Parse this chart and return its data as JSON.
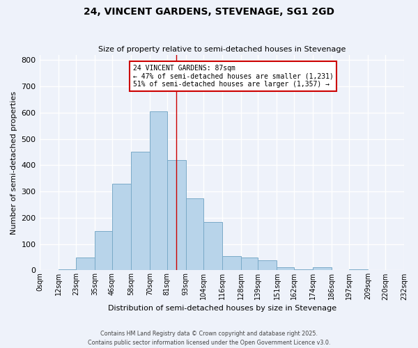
{
  "title": "24, VINCENT GARDENS, STEVENAGE, SG1 2GD",
  "subtitle": "Size of property relative to semi-detached houses in Stevenage",
  "xlabel": "Distribution of semi-detached houses by size in Stevenage",
  "ylabel": "Number of semi-detached properties",
  "bin_labels": [
    "0sqm",
    "12sqm",
    "23sqm",
    "35sqm",
    "46sqm",
    "58sqm",
    "70sqm",
    "81sqm",
    "93sqm",
    "104sqm",
    "116sqm",
    "128sqm",
    "139sqm",
    "151sqm",
    "162sqm",
    "174sqm",
    "186sqm",
    "197sqm",
    "209sqm",
    "220sqm",
    "232sqm"
  ],
  "bin_edges": [
    0,
    12,
    23,
    35,
    46,
    58,
    70,
    81,
    93,
    104,
    116,
    128,
    139,
    151,
    162,
    174,
    186,
    197,
    209,
    220,
    232
  ],
  "bar_heights": [
    0,
    5,
    48,
    150,
    330,
    450,
    605,
    420,
    275,
    185,
    55,
    48,
    38,
    12,
    5,
    12,
    0,
    5,
    0,
    0
  ],
  "bar_color": "#b8d4ea",
  "bar_edge_color": "#7aaac8",
  "reference_line_x": 87,
  "reference_line_color": "#cc0000",
  "annotation_title": "24 VINCENT GARDENS: 87sqm",
  "annotation_line1": "← 47% of semi-detached houses are smaller (1,231)",
  "annotation_line2": "51% of semi-detached houses are larger (1,357) →",
  "annotation_box_color": "#cc0000",
  "ylim": [
    0,
    820
  ],
  "yticks": [
    0,
    100,
    200,
    300,
    400,
    500,
    600,
    700,
    800
  ],
  "footer1": "Contains HM Land Registry data © Crown copyright and database right 2025.",
  "footer2": "Contains public sector information licensed under the Open Government Licence v3.0.",
  "bg_color": "#eef2fa",
  "grid_color": "#ffffff"
}
